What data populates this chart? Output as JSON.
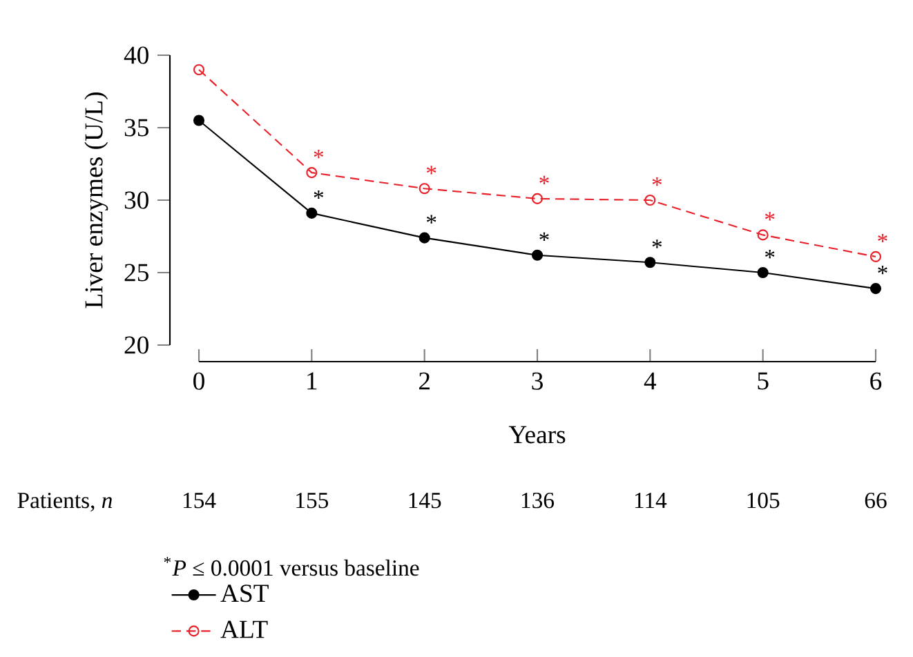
{
  "chart_data": {
    "type": "line",
    "xlabel": "Years",
    "ylabel": "Liver enzymes (U/L)",
    "x": [
      0,
      1,
      2,
      3,
      4,
      5,
      6
    ],
    "series": [
      {
        "name": "AST",
        "color": "#000000",
        "marker": "circle",
        "line_style": "solid",
        "values": [
          35.5,
          29.1,
          27.4,
          26.2,
          25.7,
          25.0,
          23.9
        ]
      },
      {
        "name": "ALT",
        "color": "#e8202a",
        "marker": "open circle",
        "line_style": "dashed",
        "values": [
          39.0,
          31.9,
          30.8,
          30.1,
          30.0,
          27.6,
          26.1
        ]
      }
    ],
    "xlim": [
      0,
      6
    ],
    "xticks": [
      0,
      1,
      2,
      3,
      4,
      5,
      6
    ],
    "ylim": [
      20,
      40
    ],
    "yticks": [
      20,
      25,
      30,
      35,
      40
    ],
    "legend": "bottom",
    "grid": false,
    "annotations": [
      "$^{*}$*P* ≤ 0.0001 versus baseline",
      "Patients, *n*",
      "154",
      "155",
      "145",
      "136",
      "114",
      "105",
      "66",
      {
        "text": "*",
        "x": 1,
        "y": 29.1
      },
      {
        "text": "*",
        "x": 2,
        "y": 27.4
      },
      {
        "text": "*",
        "x": 3,
        "y": 26.2
      },
      {
        "text": "*",
        "x": 4,
        "y": 25.7
      },
      {
        "text": "*",
        "x": 5,
        "y": 25.0
      },
      {
        "text": "*",
        "x": 6,
        "y": 23.9
      },
      {
        "text": "*",
        "x": 1,
        "y": 31.9
      },
      {
        "text": "*",
        "x": 2,
        "y": 30.8
      },
      {
        "text": "*",
        "x": 3,
        "y": 30.1
      },
      {
        "text": "*",
        "x": 4,
        "y": 30.0
      },
      {
        "text": "*",
        "x": 5,
        "y": 27.6
      },
      {
        "text": "*",
        "x": 6,
        "y": 26.1
      }
    ]
  }
}
